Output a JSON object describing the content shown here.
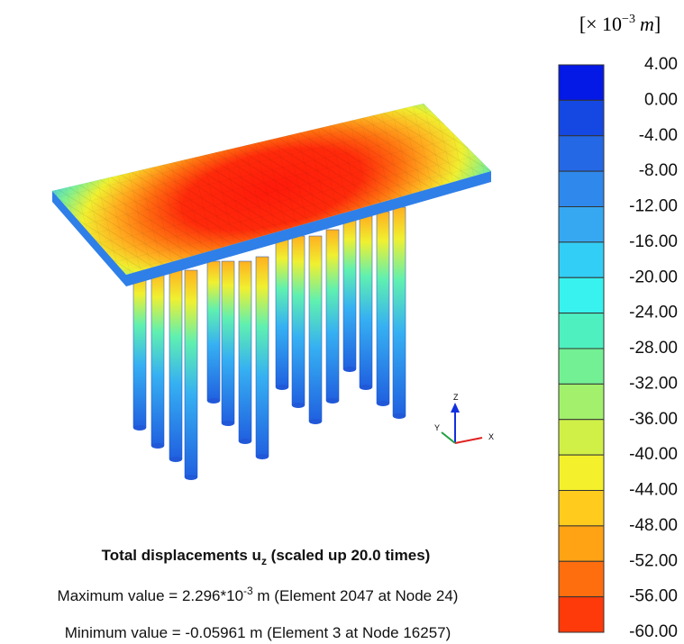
{
  "legend": {
    "unit": {
      "open": "[× 10",
      "exponent": "−3",
      "unit": "m",
      "close": "]"
    },
    "labels": [
      "4.00",
      "0.00",
      "-4.00",
      "-8.00",
      "-12.00",
      "-16.00",
      "-20.00",
      "-24.00",
      "-28.00",
      "-32.00",
      "-36.00",
      "-40.00",
      "-44.00",
      "-48.00",
      "-52.00",
      "-56.00",
      "-60.00"
    ],
    "colors": [
      "#0418e6",
      "#1548e2",
      "#2468e6",
      "#2f88ec",
      "#36a8f2",
      "#33cef6",
      "#37f2ee",
      "#4ef0c0",
      "#74f094",
      "#a2f06c",
      "#d0f048",
      "#f4f02c",
      "#ffcc1e",
      "#ffa214",
      "#ff6e0e",
      "#ff3a0a",
      "#ff0404"
    ]
  },
  "axes": {
    "z": "Z",
    "y": "Y",
    "x": "X"
  },
  "caption": {
    "title": {
      "main": "Total displacements u",
      "sub": "z",
      "rest": " (scaled up 20.0 times)"
    },
    "maximum": {
      "lead": "Maximum value = 2.296*10",
      "exponent": "-3",
      "rest": " m (Element 2047 at Node 24)"
    },
    "minimum": "Minimum value = -0.05961 m (Element 3 at Node 16257)"
  }
}
